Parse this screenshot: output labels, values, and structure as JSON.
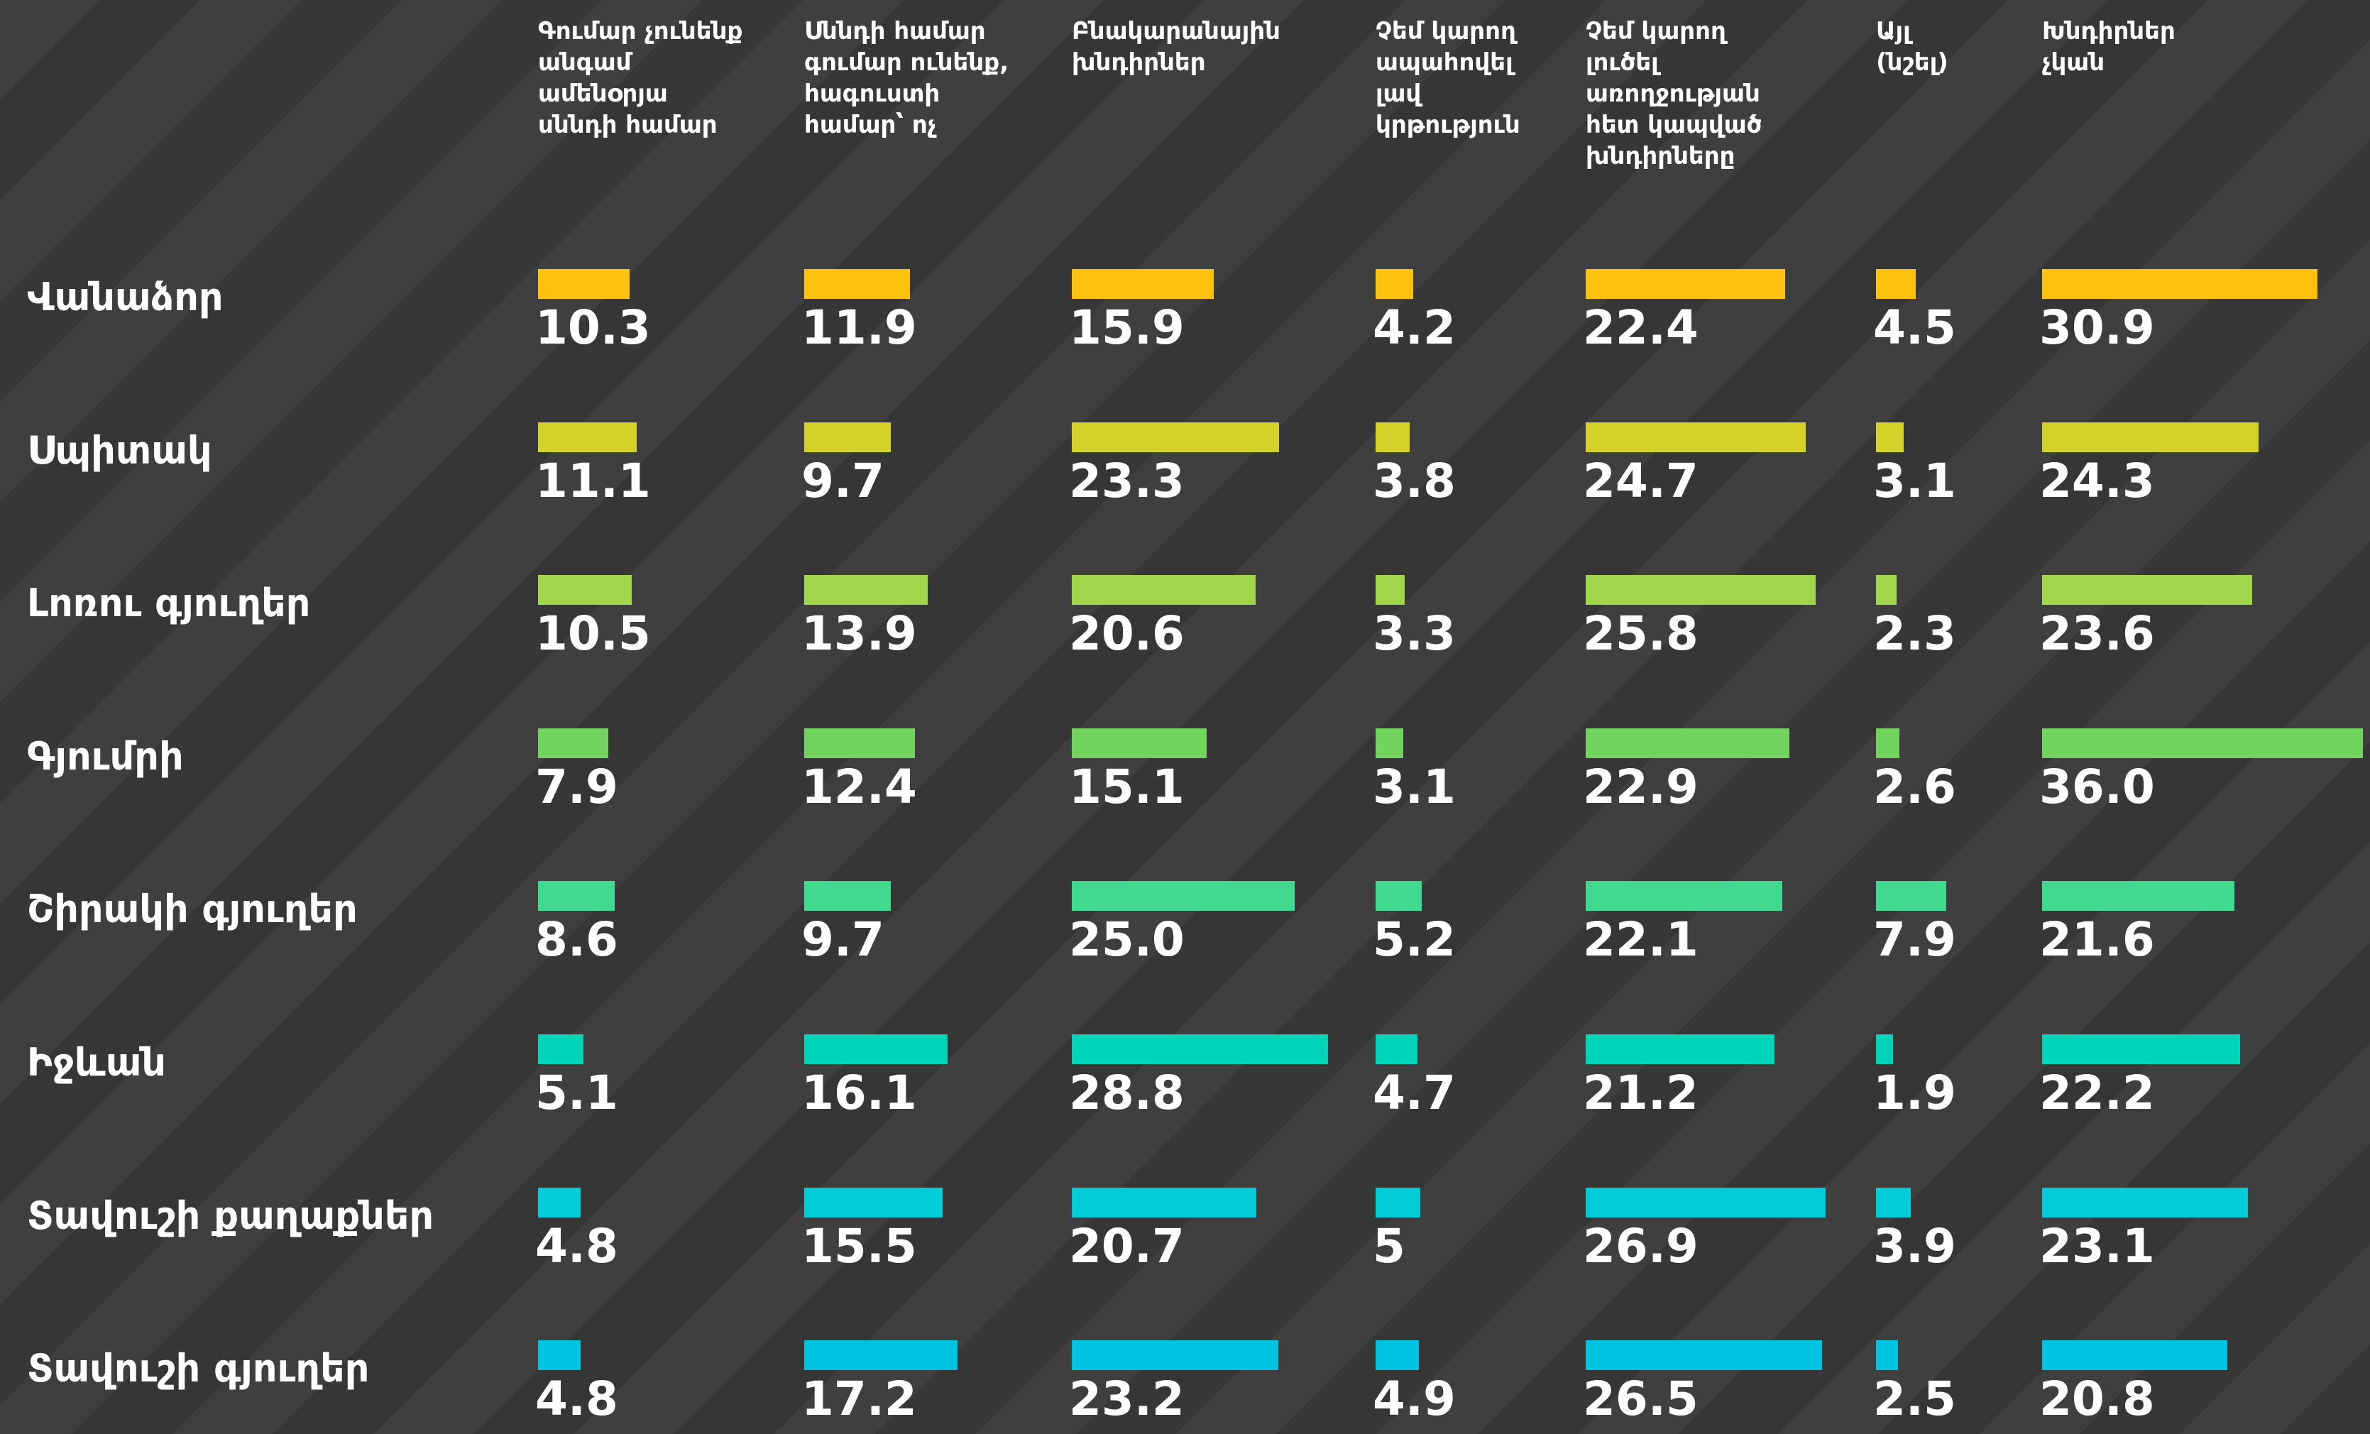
{
  "chart_data": {
    "type": "bar",
    "categories": [
      "Վանաձոր",
      "Սպիտակ",
      "Լոռու գյուղեր",
      "Գյումրի",
      "Շիրակի գյուղեր",
      "Իջևան",
      "Տավուշի քաղաքներ",
      "Տավուշի գյուղեր"
    ],
    "colors": [
      "#fdc20e",
      "#d4d22a",
      "#9fd64a",
      "#72d45e",
      "#41d98f",
      "#00d4b8",
      "#00ccd6",
      "#00c3e0"
    ],
    "series": [
      {
        "name": "Գումար չունենք\nանգամ\nամենօրյա\nսննդի համար",
        "values": [
          10.3,
          11.1,
          10.5,
          7.9,
          8.6,
          5.1,
          4.8,
          4.8
        ]
      },
      {
        "name": "Սննդի համար\nգումար ունենք,\nհագուստի\nհամար՝ ոչ",
        "values": [
          11.9,
          9.7,
          13.9,
          12.4,
          9.7,
          16.1,
          15.5,
          17.2
        ]
      },
      {
        "name": "Բնակարանային\nխնդիրներ",
        "values": [
          15.9,
          23.3,
          20.6,
          15.1,
          25.0,
          28.8,
          20.7,
          23.2
        ],
        "value_labels": [
          "15.9",
          "23.3",
          "20.6",
          "15.1",
          "25.0",
          "28.8",
          "20.7",
          "23.2"
        ]
      },
      {
        "name": "Չեմ կարող\nապահովել\nլավ\nկրթություն",
        "values": [
          4.2,
          3.8,
          3.3,
          3.1,
          5.2,
          4.7,
          5.0,
          4.9
        ]
      },
      {
        "name": "Չեմ կարող\nլուծել\nառողջության\nհետ կապված\nխնդիրները",
        "values": [
          22.4,
          24.7,
          25.8,
          22.9,
          22.1,
          21.2,
          26.9,
          26.5
        ]
      },
      {
        "name": "Այլ\n(նշել)",
        "values": [
          4.5,
          3.1,
          2.3,
          2.6,
          7.9,
          1.9,
          3.9,
          2.5
        ]
      },
      {
        "name": "Խնդիրներ\nչկան",
        "values": [
          30.9,
          24.3,
          23.6,
          36.0,
          21.6,
          22.2,
          23.1,
          20.8
        ],
        "value_labels": [
          "30.9",
          "24.3",
          "23.6",
          "36.0",
          "21.6",
          "22.2",
          "23.1",
          "20.8"
        ]
      }
    ]
  }
}
